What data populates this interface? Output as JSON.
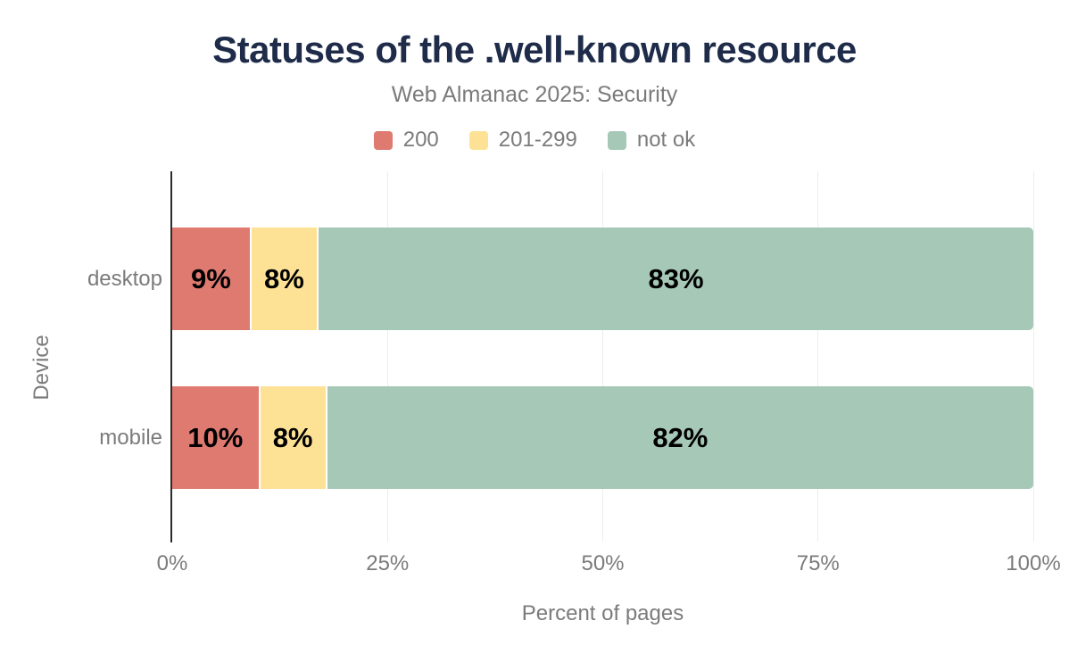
{
  "title": "Statuses of the .well-known resource",
  "subtitle": "Web Almanac 2025: Security",
  "colors": {
    "title_text": "#1e2b49",
    "secondary_text": "#7b7b7b",
    "data_label_text": "#000000",
    "gridline": "#ededed",
    "axis_line": "#2b2b2b",
    "background": "#ffffff",
    "series_200": "#df7a71",
    "series_201_299": "#fde296",
    "series_not_ok": "#a6c8b6"
  },
  "chart_data": {
    "type": "bar",
    "orientation": "horizontal",
    "stacked": true,
    "title": "Statuses of the .well-known resource",
    "subtitle": "Web Almanac 2025: Security",
    "categories": [
      "desktop",
      "mobile"
    ],
    "series": [
      {
        "name": "200",
        "color": "#df7a71",
        "values": [
          9,
          10
        ]
      },
      {
        "name": "201-299",
        "color": "#fde296",
        "values": [
          8,
          8
        ]
      },
      {
        "name": "not ok",
        "color": "#a6c8b6",
        "values": [
          83,
          82
        ]
      }
    ],
    "data_labels": [
      [
        "9%",
        "8%",
        "83%"
      ],
      [
        "10%",
        "8%",
        "82%"
      ]
    ],
    "xlabel": "Percent of pages",
    "ylabel": "Device",
    "xlim": [
      0,
      100
    ],
    "xticks": [
      {
        "value": 0,
        "label": "0%"
      },
      {
        "value": 25,
        "label": "25%"
      },
      {
        "value": 50,
        "label": "50%"
      },
      {
        "value": 75,
        "label": "75%"
      },
      {
        "value": 100,
        "label": "100%"
      }
    ],
    "legend_position": "top",
    "grid": true
  }
}
